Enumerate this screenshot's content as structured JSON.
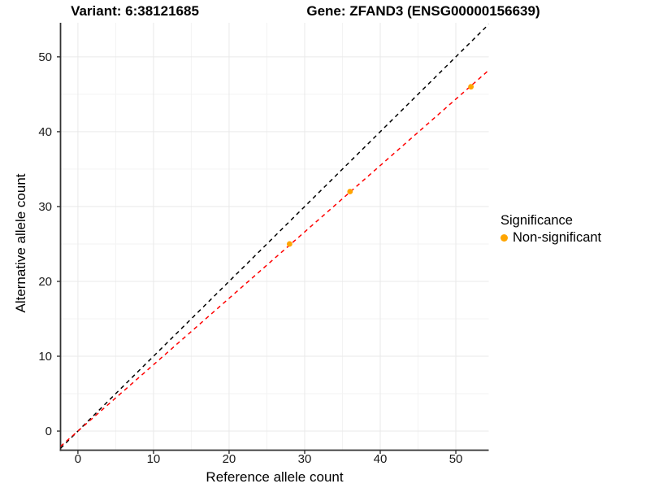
{
  "chart_data": {
    "type": "scatter",
    "titles": {
      "left": "Variant: 6:38121685",
      "right": "Gene: ZFAND3 (ENSG00000156639)"
    },
    "xlabel": "Reference allele count",
    "ylabel": "Alternative allele count",
    "xlim": [
      -2.3,
      54.35
    ],
    "ylim": [
      -2.55,
      54.55
    ],
    "xticks": [
      0,
      10,
      20,
      30,
      40,
      50
    ],
    "yticks": [
      0,
      10,
      20,
      30,
      40,
      50
    ],
    "xticks_minor": [
      5,
      15,
      25,
      35,
      45
    ],
    "yticks_minor": [
      5,
      15,
      25,
      35,
      45
    ],
    "grid": true,
    "legend_position": "right",
    "points": [
      {
        "x": 28,
        "y": 25,
        "significance": "Non-significant"
      },
      {
        "x": 36,
        "y": 32,
        "significance": "Non-significant"
      },
      {
        "x": 52,
        "y": 46,
        "significance": "Non-significant"
      }
    ],
    "point_color": "#FFA500",
    "lines": [
      {
        "name": "identity-line",
        "slope": 1,
        "intercept": 0,
        "color": "#000000",
        "style": "dashed"
      },
      {
        "name": "fit-line",
        "slope": 0.887,
        "intercept": 0,
        "color": "#FF0000",
        "style": "dashed"
      }
    ],
    "legend": {
      "title": "Significance",
      "items": [
        {
          "label": "Non-significant",
          "color": "#FFA500"
        }
      ]
    },
    "style": {
      "background": "#FFFFFF",
      "grid_major_color": "#E9E9E9",
      "grid_minor_color": "#F3F3F3",
      "axis_line_color": "#333333",
      "tick_color": "#333333",
      "text_color": "#1A1A1A"
    }
  }
}
